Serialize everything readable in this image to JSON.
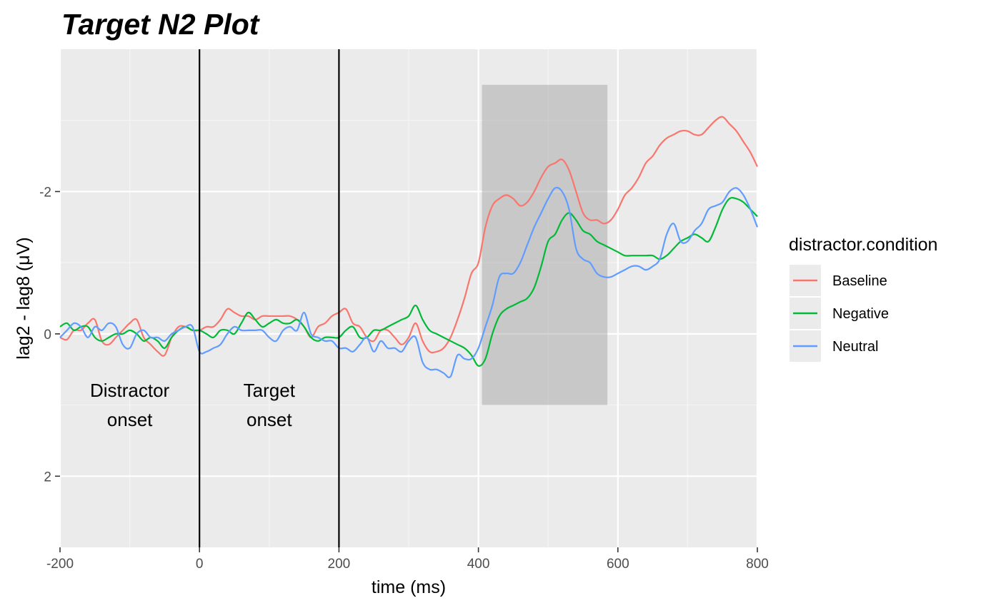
{
  "chart_data": {
    "type": "line",
    "title": "Target N2 Plot",
    "xlabel": "time (ms)",
    "ylabel": "lag2 - lag8 (μV)",
    "xlim": [
      -200,
      800
    ],
    "ylim": [
      3,
      -4
    ],
    "y_reversed": true,
    "x_ticks": [
      -200,
      0,
      200,
      400,
      600,
      800
    ],
    "x_tick_labels": [
      "-200",
      "0",
      "200",
      "400",
      "600",
      "800"
    ],
    "y_ticks": [
      -2,
      0,
      2
    ],
    "y_tick_labels": [
      "-2",
      "0",
      "2"
    ],
    "grid": true,
    "legend": {
      "title": "distractor.condition",
      "position": "right"
    },
    "vlines": [
      0,
      200
    ],
    "shaded_region": {
      "x": [
        405,
        585
      ],
      "y": [
        -3.5,
        1
      ]
    },
    "annotations": [
      {
        "lines": [
          "Distractor",
          "onset"
        ],
        "x": -100,
        "y": 1
      },
      {
        "lines": [
          "Target",
          "onset"
        ],
        "x": 100,
        "y": 1
      }
    ],
    "series": [
      {
        "name": "Baseline",
        "color": "#F8766D",
        "x": [
          -200,
          -190,
          -180,
          -170,
          -160,
          -150,
          -140,
          -130,
          -120,
          -110,
          -100,
          -90,
          -80,
          -70,
          -60,
          -50,
          -40,
          -30,
          -20,
          -10,
          0,
          10,
          20,
          30,
          40,
          50,
          60,
          70,
          80,
          90,
          100,
          110,
          120,
          130,
          140,
          150,
          160,
          170,
          180,
          190,
          200,
          210,
          220,
          230,
          240,
          250,
          260,
          270,
          280,
          290,
          300,
          310,
          320,
          330,
          340,
          350,
          360,
          370,
          380,
          390,
          400,
          410,
          420,
          430,
          440,
          450,
          460,
          470,
          480,
          490,
          500,
          510,
          520,
          530,
          540,
          550,
          560,
          570,
          580,
          590,
          600,
          610,
          620,
          630,
          640,
          650,
          660,
          670,
          680,
          690,
          700,
          710,
          720,
          730,
          740,
          750,
          760,
          770,
          780,
          790,
          800
        ],
        "y": [
          0.05,
          0.08,
          -0.05,
          -0.05,
          -0.15,
          -0.2,
          0.1,
          0.15,
          0.05,
          -0.05,
          -0.15,
          -0.2,
          0.05,
          0.15,
          0.25,
          0.3,
          0.05,
          -0.1,
          -0.1,
          -0.05,
          -0.05,
          -0.1,
          -0.1,
          -0.2,
          -0.35,
          -0.3,
          -0.25,
          -0.25,
          -0.2,
          -0.25,
          -0.25,
          -0.25,
          -0.25,
          -0.25,
          -0.2,
          -0.1,
          0.05,
          -0.1,
          -0.15,
          -0.25,
          -0.3,
          -0.35,
          -0.15,
          -0.1,
          0.05,
          0.1,
          -0.05,
          -0.05,
          0.05,
          0.15,
          0.05,
          -0.15,
          0.1,
          0.25,
          0.25,
          0.2,
          0.05,
          -0.2,
          -0.5,
          -0.85,
          -1,
          -1.5,
          -1.8,
          -1.9,
          -1.95,
          -1.9,
          -1.8,
          -1.85,
          -2.0,
          -2.2,
          -2.35,
          -2.4,
          -2.45,
          -2.3,
          -2.0,
          -1.7,
          -1.6,
          -1.6,
          -1.55,
          -1.6,
          -1.75,
          -1.95,
          -2.05,
          -2.2,
          -2.4,
          -2.5,
          -2.65,
          -2.75,
          -2.8,
          -2.85,
          -2.85,
          -2.8,
          -2.8,
          -2.9,
          -3.0,
          -3.05,
          -2.95,
          -2.85,
          -2.7,
          -2.55,
          -2.35
        ]
      },
      {
        "name": "Negative",
        "color": "#00BA38",
        "x": [
          -200,
          -190,
          -180,
          -170,
          -160,
          -150,
          -140,
          -130,
          -120,
          -110,
          -100,
          -90,
          -80,
          -70,
          -60,
          -50,
          -40,
          -30,
          -20,
          -10,
          0,
          10,
          20,
          30,
          40,
          50,
          60,
          70,
          80,
          90,
          100,
          110,
          120,
          130,
          140,
          150,
          160,
          170,
          180,
          190,
          200,
          210,
          220,
          230,
          240,
          250,
          260,
          270,
          280,
          290,
          300,
          310,
          320,
          330,
          340,
          350,
          360,
          370,
          380,
          390,
          400,
          410,
          420,
          430,
          440,
          450,
          460,
          470,
          480,
          490,
          500,
          510,
          520,
          530,
          540,
          550,
          560,
          570,
          580,
          590,
          600,
          610,
          620,
          630,
          640,
          650,
          660,
          670,
          680,
          690,
          700,
          710,
          720,
          730,
          740,
          750,
          760,
          770,
          780,
          790,
          800
        ],
        "y": [
          -0.1,
          -0.15,
          -0.05,
          -0.1,
          -0.1,
          0.05,
          0.1,
          0.05,
          0.0,
          0.0,
          -0.05,
          0.0,
          0.1,
          0.05,
          0.1,
          0.2,
          0.05,
          -0.05,
          -0.1,
          -0.05,
          -0.05,
          0.0,
          0.05,
          -0.05,
          -0.05,
          0.0,
          -0.15,
          -0.3,
          -0.2,
          -0.1,
          -0.15,
          -0.2,
          -0.15,
          -0.15,
          -0.2,
          -0.1,
          0.05,
          0.1,
          0.05,
          0.05,
          0.05,
          -0.05,
          -0.1,
          0.05,
          0.05,
          -0.05,
          -0.05,
          -0.1,
          -0.15,
          -0.2,
          -0.25,
          -0.4,
          -0.2,
          -0.05,
          0.0,
          0.05,
          0.1,
          0.15,
          0.2,
          0.3,
          0.45,
          0.35,
          0.0,
          -0.25,
          -0.35,
          -0.4,
          -0.45,
          -0.5,
          -0.65,
          -0.95,
          -1.3,
          -1.4,
          -1.6,
          -1.7,
          -1.6,
          -1.45,
          -1.4,
          -1.3,
          -1.25,
          -1.2,
          -1.15,
          -1.1,
          -1.1,
          -1.1,
          -1.1,
          -1.1,
          -1.05,
          -1.1,
          -1.2,
          -1.3,
          -1.35,
          -1.4,
          -1.35,
          -1.3,
          -1.5,
          -1.75,
          -1.9,
          -1.9,
          -1.85,
          -1.75,
          -1.65
        ]
      },
      {
        "name": "Neutral",
        "color": "#619CFF",
        "x": [
          -200,
          -190,
          -180,
          -170,
          -160,
          -150,
          -140,
          -130,
          -120,
          -110,
          -100,
          -90,
          -80,
          -70,
          -60,
          -50,
          -40,
          -30,
          -20,
          -10,
          0,
          10,
          20,
          30,
          40,
          50,
          60,
          70,
          80,
          90,
          100,
          110,
          120,
          130,
          140,
          150,
          160,
          170,
          180,
          190,
          200,
          210,
          220,
          230,
          240,
          250,
          260,
          270,
          280,
          290,
          300,
          310,
          320,
          330,
          340,
          350,
          360,
          370,
          380,
          390,
          400,
          410,
          420,
          430,
          440,
          450,
          460,
          470,
          480,
          490,
          500,
          510,
          520,
          530,
          540,
          550,
          560,
          570,
          580,
          590,
          600,
          610,
          620,
          630,
          640,
          650,
          660,
          670,
          680,
          690,
          700,
          710,
          720,
          730,
          740,
          750,
          760,
          770,
          780,
          790,
          800
        ],
        "y": [
          0.05,
          -0.05,
          -0.15,
          -0.1,
          0.05,
          -0.1,
          -0.05,
          -0.15,
          -0.1,
          0.15,
          0.2,
          0.0,
          -0.05,
          0.05,
          0.05,
          0.1,
          0.0,
          -0.05,
          -0.1,
          -0.1,
          0.25,
          0.25,
          0.2,
          0.15,
          0.0,
          -0.1,
          -0.05,
          -0.05,
          -0.05,
          -0.05,
          0.05,
          0.1,
          -0.05,
          -0.1,
          -0.05,
          -0.3,
          0.0,
          0.05,
          0.1,
          0.1,
          0.2,
          0.2,
          0.25,
          0.15,
          0.05,
          0.25,
          0.1,
          0.2,
          0.2,
          0.25,
          0.1,
          0.05,
          0.4,
          0.5,
          0.5,
          0.55,
          0.6,
          0.3,
          0.35,
          0.35,
          0.2,
          -0.1,
          -0.4,
          -0.8,
          -0.85,
          -0.85,
          -1.0,
          -1.25,
          -1.5,
          -1.7,
          -1.9,
          -2.05,
          -2.0,
          -1.75,
          -1.2,
          -1.05,
          -1.0,
          -0.85,
          -0.8,
          -0.8,
          -0.85,
          -0.9,
          -0.95,
          -0.95,
          -0.9,
          -0.95,
          -1.05,
          -1.4,
          -1.55,
          -1.3,
          -1.3,
          -1.45,
          -1.55,
          -1.75,
          -1.8,
          -1.85,
          -2.0,
          -2.05,
          -1.95,
          -1.75,
          -1.5
        ]
      }
    ]
  }
}
